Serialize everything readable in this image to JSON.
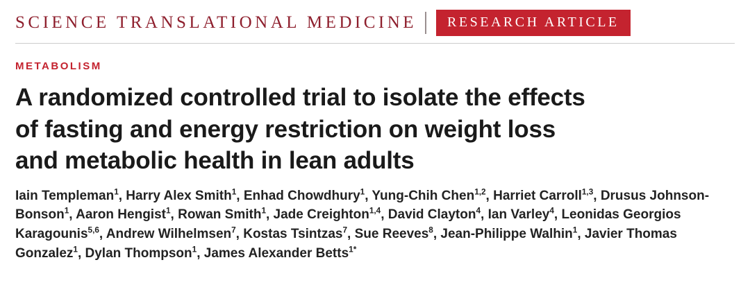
{
  "colors": {
    "journal_red": "#8e1f2d",
    "accent_red": "#c4232f",
    "title_black": "#1a1a1a",
    "author_black": "#222222",
    "rule_gray": "#cccccc"
  },
  "masthead": {
    "journal_name": "SCIENCE TRANSLATIONAL MEDICINE",
    "badge_label": "RESEARCH ARTICLE"
  },
  "article": {
    "section_label": "METABOLISM",
    "title": "A randomized controlled trial to isolate the effects\nof fasting and energy restriction on weight loss\nand metabolic health in lean adults",
    "authors": [
      {
        "name": "Iain Templeman",
        "affiliation": "1"
      },
      {
        "name": "Harry Alex Smith",
        "affiliation": "1"
      },
      {
        "name": "Enhad Chowdhury",
        "affiliation": "1"
      },
      {
        "name": "Yung-Chih Chen",
        "affiliation": "1,2"
      },
      {
        "name": "Harriet Carroll",
        "affiliation": "1,3"
      },
      {
        "name": "Drusus Johnson-Bonson",
        "affiliation": "1"
      },
      {
        "name": "Aaron Hengist",
        "affiliation": "1"
      },
      {
        "name": "Rowan Smith",
        "affiliation": "1"
      },
      {
        "name": "Jade Creighton",
        "affiliation": "1,4"
      },
      {
        "name": "David Clayton",
        "affiliation": "4"
      },
      {
        "name": "Ian Varley",
        "affiliation": "4"
      },
      {
        "name": "Leonidas Georgios Karagounis",
        "affiliation": "5,6"
      },
      {
        "name": "Andrew Wilhelmsen",
        "affiliation": "7"
      },
      {
        "name": "Kostas Tsintzas",
        "affiliation": "7"
      },
      {
        "name": "Sue Reeves",
        "affiliation": "8"
      },
      {
        "name": "Jean-Philippe Walhin",
        "affiliation": "1"
      },
      {
        "name": "Javier Thomas Gonzalez",
        "affiliation": "1"
      },
      {
        "name": "Dylan Thompson",
        "affiliation": "1"
      },
      {
        "name": "James Alexander Betts",
        "affiliation": "1*"
      }
    ]
  }
}
